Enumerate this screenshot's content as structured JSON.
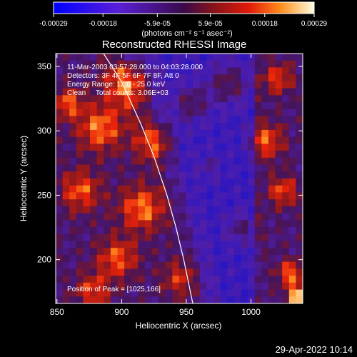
{
  "colorbar": {
    "tick_labels": [
      "-0.00029",
      "-0.00018",
      "-5.9e-05",
      "5.9e-05",
      "0.00018",
      "0.00029"
    ],
    "tick_values": [
      -0.00029,
      -0.00018,
      -5.9e-05,
      5.9e-05,
      0.00018,
      0.00029
    ],
    "units_line": "(photons cm⁻² s⁻¹ asec⁻²)"
  },
  "chart_data": {
    "type": "heatmap",
    "title": "Reconstructed RHESSI Image",
    "xlabel": "Heliocentric X (arcsec)",
    "ylabel": "Heliocentric Y (arcsec)",
    "xlim": [
      849,
      1040
    ],
    "ylim": [
      166,
      360
    ],
    "x_ticks": [
      850,
      900,
      950,
      1000
    ],
    "y_ticks": [
      200,
      250,
      300,
      350
    ],
    "annotations": [
      "11-Mar-2003 03:57:28.000 to 04:03:28.000",
      "Detectors: 3F 4F 5F 6F 7F 8F, Att 0",
      "Energy Range: 12.0 - 25.0 keV",
      "Clean     Total counts: 3.06E+03"
    ],
    "peak_label": "Position of Peak = [1025,166]",
    "value_range": [
      -0.00029,
      0.00029
    ],
    "limb_curve": [
      [
        886,
        360
      ],
      [
        900,
        338
      ],
      [
        915,
        305
      ],
      [
        925,
        280
      ],
      [
        935,
        250
      ],
      [
        942,
        225
      ],
      [
        948,
        200
      ],
      [
        955,
        166
      ]
    ]
  },
  "footer": {
    "timestamp": "29-Apr-2022 10:14"
  },
  "colors": {
    "background": "#000000",
    "text": "#ffffff",
    "limb_line": "#ffffff"
  }
}
